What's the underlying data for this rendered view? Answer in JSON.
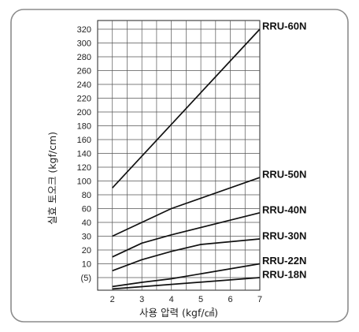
{
  "chart_data": {
    "type": "line",
    "title": "",
    "xlabel": "사용 압력 (kgf/㎠)",
    "ylabel": "실효 토오크 (kgf/cm)",
    "xlim": [
      1.5,
      7
    ],
    "x_ticks": [
      2,
      3,
      4,
      5,
      6,
      7
    ],
    "y_tick_labels": [
      "(5)",
      "10",
      "20",
      "30",
      "40",
      "60",
      "80",
      "100",
      "120",
      "140",
      "160",
      "180",
      "200",
      "220",
      "240",
      "260",
      "280",
      "300",
      "320"
    ],
    "y_scale": "categorical-nonuniform",
    "grid": true,
    "legend": "direct-labels-right",
    "series": [
      {
        "name": "RRU-60N",
        "x": [
          2,
          7
        ],
        "y": [
          90,
          320
        ]
      },
      {
        "name": "RRU-50N",
        "x": [
          2,
          4,
          7
        ],
        "y": [
          30,
          60,
          105
        ]
      },
      {
        "name": "RRU-40N",
        "x": [
          2,
          3,
          4,
          7
        ],
        "y": [
          15,
          25,
          31,
          54
        ]
      },
      {
        "name": "RRU-30N",
        "x": [
          2,
          3,
          4,
          5,
          7
        ],
        "y": [
          7.5,
          13,
          19,
          24,
          28
        ]
      },
      {
        "name": "RRU-22N",
        "x": [
          2,
          3,
          4,
          7
        ],
        "y": [
          1.2,
          3,
          4.5,
          10
        ]
      },
      {
        "name": "RRU-18N",
        "x": [
          2,
          7
        ],
        "y": [
          0.2,
          5
        ]
      }
    ]
  }
}
